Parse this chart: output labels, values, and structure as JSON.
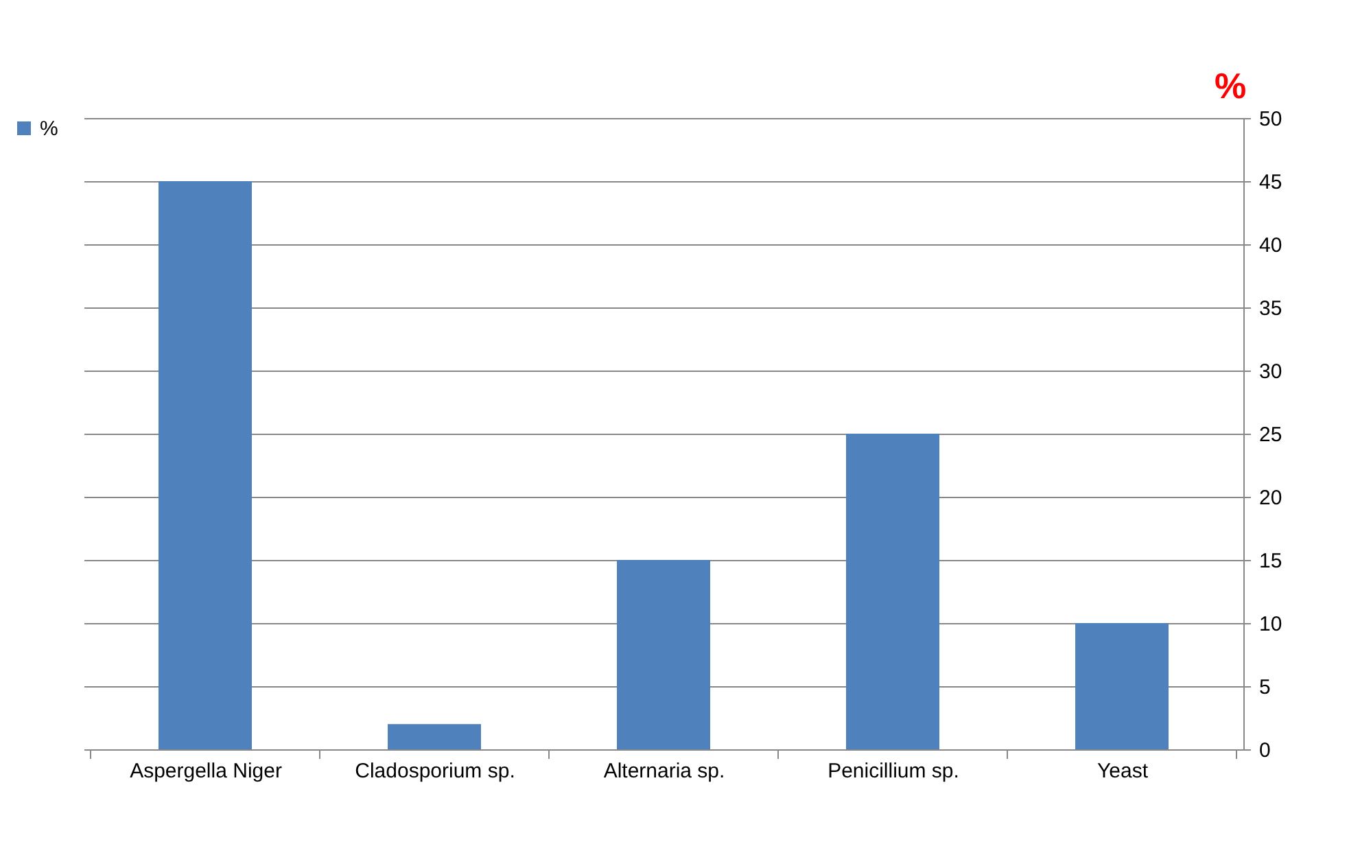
{
  "chart_data": {
    "type": "bar",
    "ylabel": "%",
    "categories": [
      "Aspergella Niger",
      "Cladosporium sp.",
      "Alternaria sp.",
      "Penicillium sp.",
      "Yeast"
    ],
    "series": [
      {
        "name": "%",
        "color": "#4f81bd",
        "values": [
          45,
          2,
          15,
          25,
          10
        ],
        "axis": "y2"
      }
    ],
    "y2lim": [
      0,
      50
    ],
    "y2ticks": [
      0,
      5,
      10,
      15,
      20,
      25,
      30,
      35,
      40,
      45,
      50
    ],
    "grid": "y",
    "legend": "left"
  }
}
